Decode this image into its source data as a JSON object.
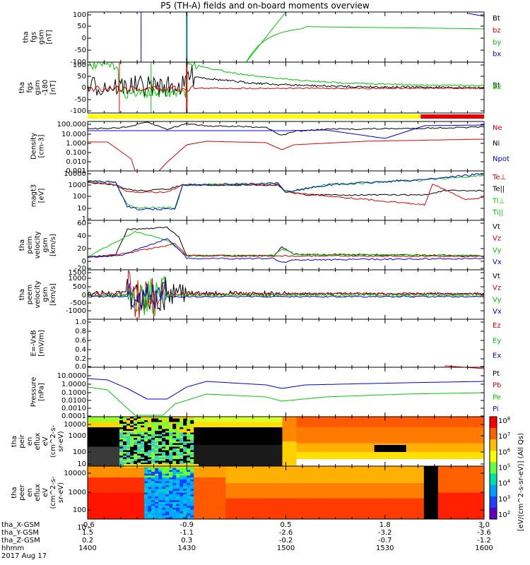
{
  "title": "P5 (TH-A) fields and on-board moments overview",
  "chart_data": {
    "type": "line",
    "x_axis": {
      "range_hhmm": [
        "1400",
        "1600"
      ],
      "major_ticks": [
        "1400",
        "1430",
        "1500",
        "1530",
        "1600"
      ],
      "rows": [
        {
          "label": "tha_X-GSM",
          "values": [
            "-0.6",
            "-0.9",
            "0.5",
            "1.8",
            "3.0"
          ]
        },
        {
          "label": "tha_Y-GSM",
          "values": [
            "1.5",
            "-1.1",
            "-2.6",
            "-3.2",
            "-3.6"
          ]
        },
        {
          "label": "tha_Z-GSM",
          "values": [
            "0.2",
            "0.3",
            "-0.2",
            "-0.7",
            "-1.2"
          ]
        },
        {
          "label": "hhmm",
          "values": [
            "1400",
            "1430",
            "1500",
            "1530",
            "1600"
          ]
        }
      ],
      "date": "2017 Aug 17"
    },
    "panels": [
      {
        "id": "fgs",
        "ylabel": [
          "tha",
          "fgs",
          "gsm",
          "[nT]"
        ],
        "yticks": [
          "100",
          "50",
          "0",
          "-50",
          "-100"
        ],
        "legend": [
          {
            "name": "Bt",
            "color": "#000000"
          },
          {
            "name": "bz",
            "color": "#e00000"
          },
          {
            "name": "by",
            "color": "#00cc00"
          },
          {
            "name": "bx",
            "color": "#0000e0"
          }
        ]
      },
      {
        "id": "fgs-gse",
        "ylabel": [
          "tha",
          "fgs",
          "gsm",
          "-180",
          "[nT]"
        ],
        "yticks": [
          "100",
          "50",
          "0",
          "-50",
          "-100"
        ],
        "legend_overlap": [
          "Bt",
          "Bz"
        ]
      },
      {
        "id": "density",
        "ylabel": [
          "Density",
          "[cm-3]"
        ],
        "yticks": [
          "100.000",
          "10.000",
          "1.000",
          "0.100",
          "0.010",
          "0.001"
        ],
        "legend": [
          {
            "name": "Ne",
            "color": "#e00000"
          },
          {
            "name": "Ni",
            "color": "#000000"
          },
          {
            "name": "Npot",
            "color": "#0000e0"
          }
        ]
      },
      {
        "id": "temperature",
        "ylabel": [
          "magt3",
          "[eV]"
        ],
        "yticks": [
          "10000",
          "1000",
          "100",
          "10",
          "1"
        ],
        "legend": [
          {
            "name": "Te⊥",
            "color": "#e00000"
          },
          {
            "name": "Te||",
            "color": "#000000"
          },
          {
            "name": "Ti⊥",
            "color": "#00cc00"
          },
          {
            "name": "Ti||",
            "color": "#00cc00"
          }
        ]
      },
      {
        "id": "peim-velocity",
        "ylabel": [
          "tha",
          "peim",
          "velocity",
          "gsm",
          "[km/s]"
        ],
        "yticks": [
          "60",
          "40",
          "20",
          "0",
          "-20"
        ],
        "legend": [
          {
            "name": "Vt",
            "color": "#000000"
          },
          {
            "name": "Vz",
            "color": "#e00000"
          },
          {
            "name": "Vy",
            "color": "#00cc00"
          },
          {
            "name": "Vx",
            "color": "#0000e0"
          }
        ]
      },
      {
        "id": "peem-velocity",
        "ylabel": [
          "tha",
          "peem",
          "velocity",
          "gsm",
          "[km/s]"
        ],
        "yticks": [
          "1500",
          "1000",
          "500",
          "0",
          "-500",
          "-1000"
        ],
        "legend": [
          {
            "name": "Vt",
            "color": "#000000"
          },
          {
            "name": "Vz",
            "color": "#e00000"
          },
          {
            "name": "Vy",
            "color": "#00cc00"
          },
          {
            "name": "Vx",
            "color": "#0000e0"
          }
        ]
      },
      {
        "id": "efield",
        "ylabel": [
          "E=-VxB",
          "[mV/m]"
        ],
        "yticks": [
          "1.0",
          "0.8",
          "0.6",
          "0.4",
          "0.2",
          "0.0"
        ],
        "legend": [
          {
            "name": "Ez",
            "color": "#e00000"
          },
          {
            "name": "Ey",
            "color": "#00cc00"
          },
          {
            "name": "Ex",
            "color": "#0000e0"
          }
        ]
      },
      {
        "id": "pressure",
        "ylabel": [
          "Pressure",
          "[nPa]"
        ],
        "yticks": [
          "10.0000",
          "1.0000",
          "0.1000",
          "0.0100",
          "0.0010",
          "0.0001"
        ],
        "legend": [
          {
            "name": "Pt",
            "color": "#000000"
          },
          {
            "name": "Pb",
            "color": "#e00000"
          },
          {
            "name": "Pe",
            "color": "#00cc00"
          },
          {
            "name": "Pi",
            "color": "#0000e0"
          }
        ]
      },
      {
        "id": "peir-eflux",
        "ylabel": [
          "tha",
          "peir",
          "en",
          "eflux",
          "eV",
          "(cm^2-s-",
          "sr-eV)"
        ],
        "yticks": [
          "10000",
          "1000",
          "100",
          "10"
        ]
      },
      {
        "id": "peer-eflux",
        "ylabel": [
          "tha",
          "peer",
          "en",
          "eflux",
          "eV",
          "(cm^2-s-",
          "sr-eV)"
        ],
        "yticks": [
          "10000",
          "1000",
          "100",
          "10"
        ]
      }
    ],
    "colorbar": {
      "ticks": [
        "10^8",
        "10^7",
        "10^6",
        "10^5",
        "10^4",
        "10^3",
        "10^2"
      ],
      "label": "[eV/(cm^2-s-sr-eV)] (All Qs)"
    },
    "colors": {
      "red": "#e00000",
      "green": "#00cc00",
      "blue": "#0000e0",
      "yellow": "#ffff00",
      "teal": "#008080"
    }
  }
}
